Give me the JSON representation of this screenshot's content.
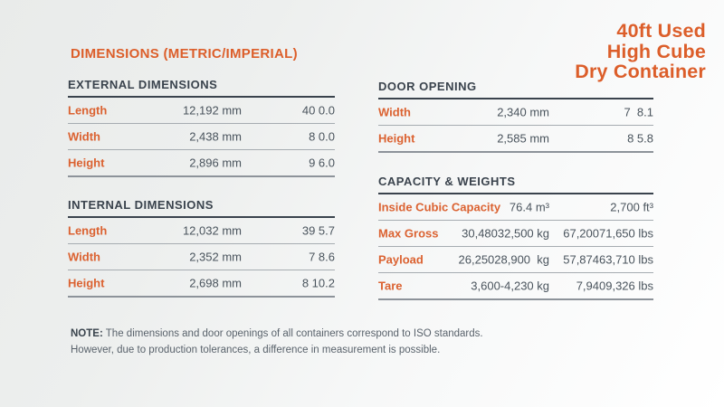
{
  "product_title": {
    "line1": "40ft Used",
    "line2": "High Cube",
    "line3": "Dry Container"
  },
  "page_heading": "DIMENSIONS (METRIC/IMPERIAL)",
  "external": {
    "header": "EXTERNAL DIMENSIONS",
    "rows": [
      {
        "label": "Length",
        "metric": "12,192 mm",
        "imperial": "40 0.0"
      },
      {
        "label": "Width",
        "metric": "2,438 mm",
        "imperial": "8 0.0"
      },
      {
        "label": "Height",
        "metric": "2,896 mm",
        "imperial": "9 6.0"
      }
    ]
  },
  "internal": {
    "header": "INTERNAL DIMENSIONS",
    "rows": [
      {
        "label": "Length",
        "metric": "12,032 mm",
        "imperial": "39 5.7"
      },
      {
        "label": "Width",
        "metric": "2,352 mm",
        "imperial": "7 8.6"
      },
      {
        "label": "Height",
        "metric": "2,698 mm",
        "imperial": "8 10.2"
      }
    ]
  },
  "door": {
    "header": "DOOR OPENING",
    "rows": [
      {
        "label": "Width",
        "metric": "2,340 mm",
        "imperial": "7  8.1"
      },
      {
        "label": "Height",
        "metric": "2,585 mm",
        "imperial": "8 5.8"
      }
    ]
  },
  "capacity": {
    "header": "CAPACITY & WEIGHTS",
    "rows": [
      {
        "label": "Inside Cubic Capacity",
        "metric": "76.4 m³",
        "imperial": "2,700 ft³"
      },
      {
        "label": "Max Gross",
        "metric": "30,48032,500 kg",
        "imperial": "67,20071,650 lbs"
      },
      {
        "label": "Payload",
        "metric": "26,25028,900  kg",
        "imperial": "57,87463,710 lbs"
      },
      {
        "label": "Tare",
        "metric": "3,600-4,230 kg",
        "imperial": "7,9409,326 lbs"
      }
    ]
  },
  "note": {
    "label": "NOTE:",
    "line1": "The dimensions and door openings of all containers correspond to ISO standards.",
    "line2": "However, due to production tolerances, a difference in measurement is possible."
  },
  "colors": {
    "accent_orange": "#DC5E2A",
    "heading_dark": "#3A434D",
    "value_gray": "#4A545D",
    "background_gray": "#E9EBEA"
  }
}
